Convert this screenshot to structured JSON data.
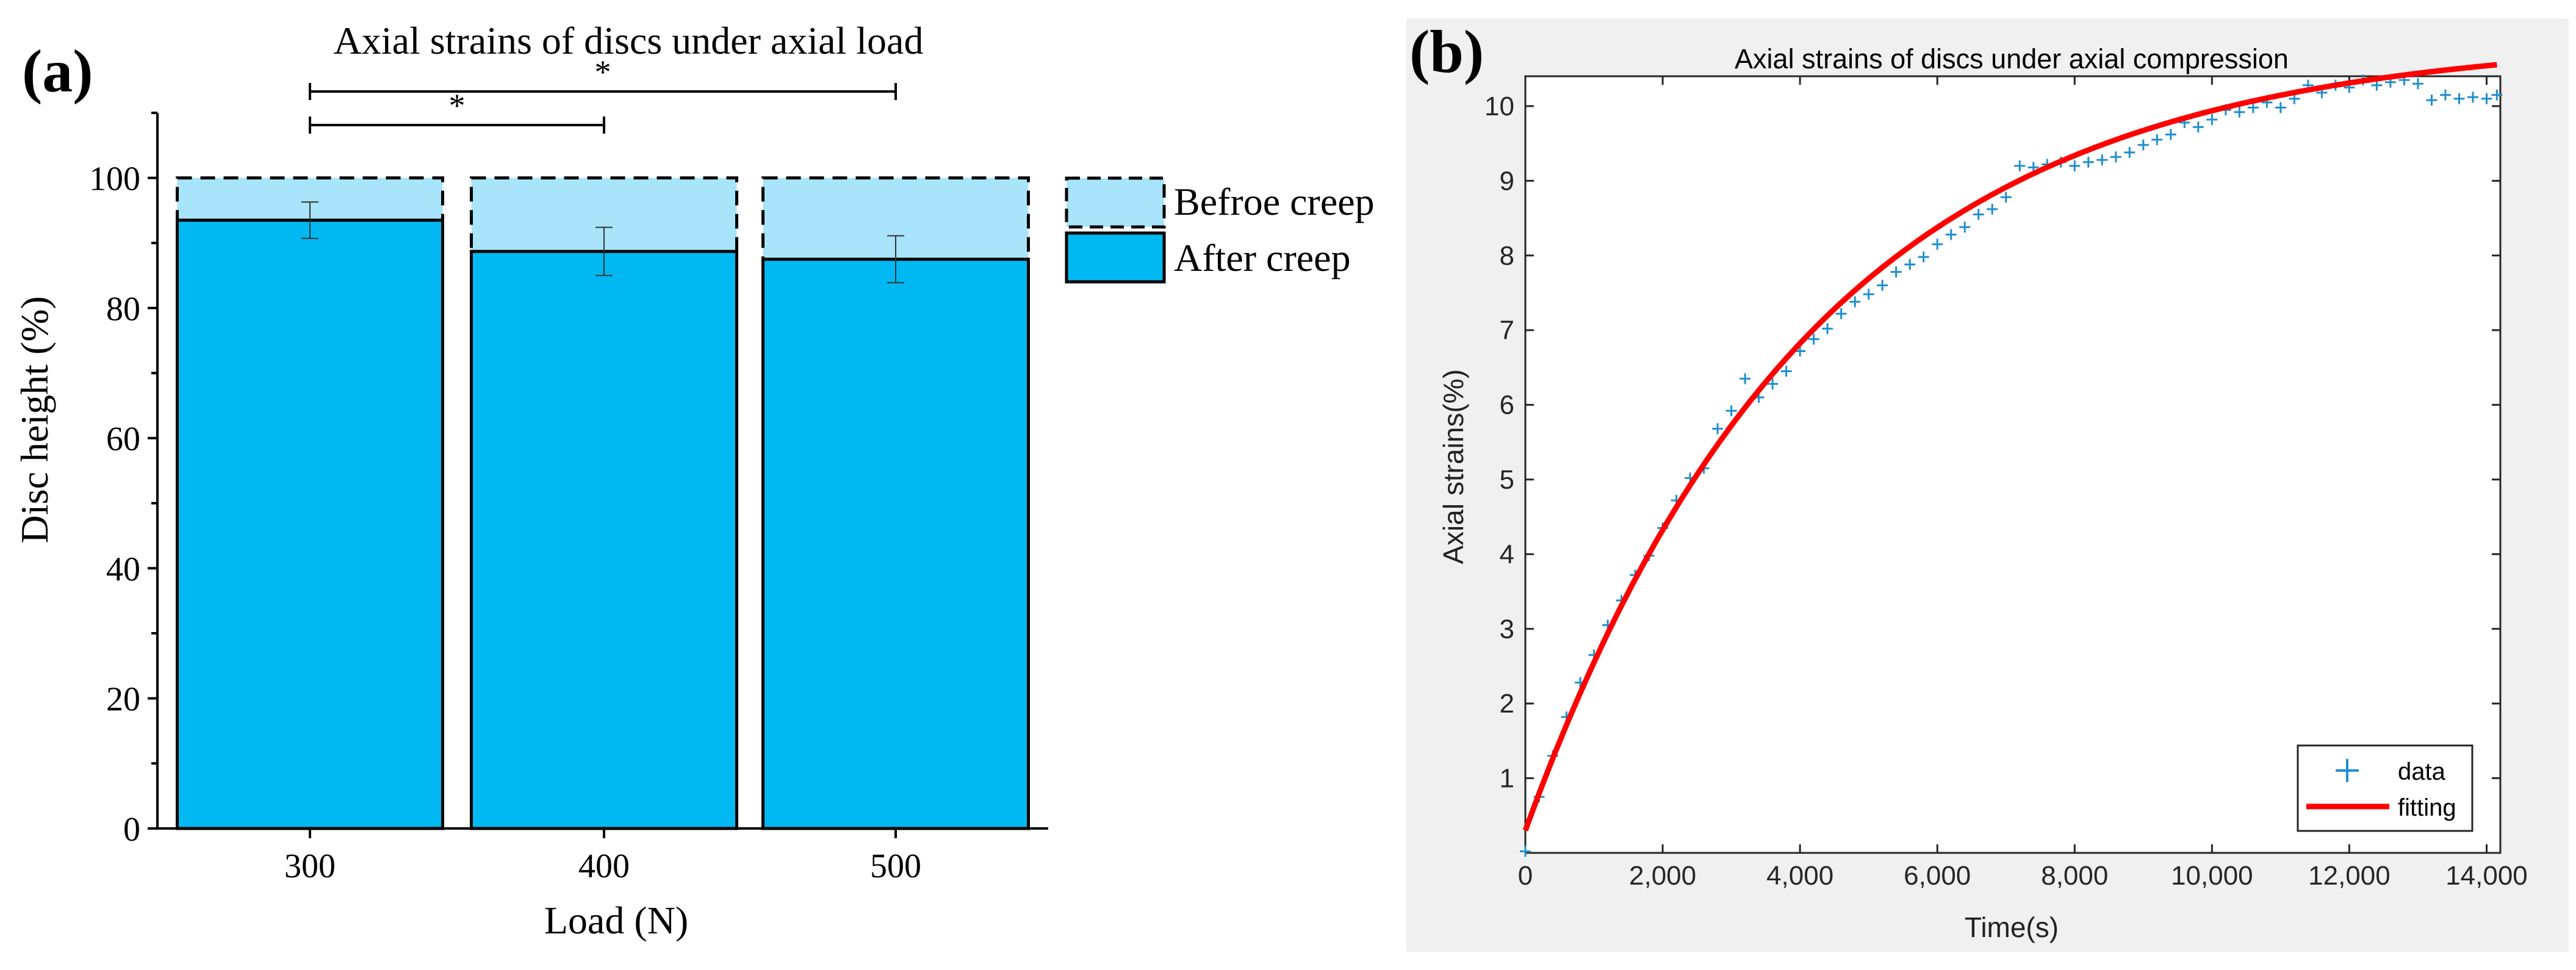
{
  "panel_a": {
    "label": "(a)"
  },
  "panel_b": {
    "label": "(b)"
  },
  "colors": {
    "after_fill": "#00b9f2",
    "before_fill": "#a8e4fa",
    "fit_line": "#ff0000",
    "data_marker": "#1f8fcf",
    "panel_b_bg": "#f0f0f0"
  },
  "chart_data": [
    {
      "type": "bar",
      "title": "Axial strains of discs under axial load",
      "xlabel": "Load (N)",
      "ylabel": "Disc height (%)",
      "categories": [
        "300",
        "400",
        "500"
      ],
      "ylim": [
        0,
        110
      ],
      "yticks": [
        0,
        20,
        40,
        60,
        80,
        100
      ],
      "series": [
        {
          "name": "Befroe creep",
          "values": [
            100,
            100,
            100
          ],
          "style": "dashed-outline"
        },
        {
          "name": "After creep",
          "values": [
            93.5,
            88.7,
            87.5
          ],
          "errors": [
            2.8,
            3.7,
            3.6
          ]
        }
      ],
      "legend": [
        "Befroe creep",
        "After creep"
      ],
      "legend_position": "right",
      "significance": [
        {
          "from": "300",
          "to": "400",
          "label": "*"
        },
        {
          "from": "300",
          "to": "500",
          "label": "*"
        }
      ]
    },
    {
      "type": "scatter",
      "title": "Axial strains of discs under axial compression",
      "xlabel": "Time(s)",
      "ylabel": "Axial strains(%)",
      "xlim": [
        0,
        14200
      ],
      "ylim": [
        0,
        10.4
      ],
      "xticks": [
        0,
        2000,
        4000,
        6000,
        8000,
        10000,
        12000,
        14000
      ],
      "xtick_labels": [
        "0",
        "2,000",
        "4,000",
        "6,000",
        "8,000",
        "10,000",
        "12,000",
        "14,000"
      ],
      "yticks": [
        1,
        2,
        3,
        4,
        5,
        6,
        7,
        8,
        9,
        10
      ],
      "legend": [
        "data",
        "fitting"
      ],
      "legend_position": "bottom-right",
      "series": [
        {
          "name": "data",
          "marker": "+",
          "x": [
            0,
            200,
            400,
            600,
            800,
            1000,
            1200,
            1400,
            1600,
            1800,
            2000,
            2200,
            2400,
            2600,
            2800,
            3000,
            3200,
            3400,
            3600,
            3800,
            4000,
            4200,
            4400,
            4600,
            4800,
            5000,
            5200,
            5400,
            5600,
            5800,
            6000,
            6200,
            6400,
            6600,
            6800,
            7000,
            7200,
            7400,
            7600,
            7800,
            8000,
            8200,
            8400,
            8600,
            8800,
            9000,
            9200,
            9400,
            9600,
            9800,
            10000,
            10200,
            10400,
            10600,
            10800,
            11000,
            11200,
            11400,
            11600,
            11800,
            12000,
            12200,
            12400,
            12600,
            12800,
            13000,
            13200,
            13400,
            13600,
            13800,
            14000,
            14150
          ],
          "y": [
            0.02,
            0.75,
            1.3,
            1.82,
            2.28,
            2.65,
            3.05,
            3.38,
            3.72,
            3.98,
            4.35,
            4.72,
            5.02,
            5.15,
            5.68,
            5.92,
            6.35,
            6.1,
            6.28,
            6.45,
            6.72,
            6.88,
            7.02,
            7.22,
            7.38,
            7.48,
            7.6,
            7.78,
            7.88,
            7.98,
            8.15,
            8.28,
            8.38,
            8.55,
            8.62,
            8.78,
            9.2,
            9.18,
            9.22,
            9.25,
            9.2,
            9.25,
            9.28,
            9.32,
            9.38,
            9.48,
            9.55,
            9.62,
            9.78,
            9.72,
            9.82,
            9.95,
            9.92,
            9.98,
            10.05,
            9.98,
            10.1,
            10.28,
            10.18,
            10.28,
            10.25,
            10.35,
            10.28,
            10.32,
            10.35,
            10.3,
            10.08,
            10.15,
            10.1,
            10.12,
            10.1,
            10.15
          ]
        },
        {
          "name": "fitting",
          "model": "y = a - b*exp(-x/tau)",
          "params": {
            "a": 10.92,
            "b": 10.62,
            "tau": 4200
          }
        }
      ]
    }
  ]
}
